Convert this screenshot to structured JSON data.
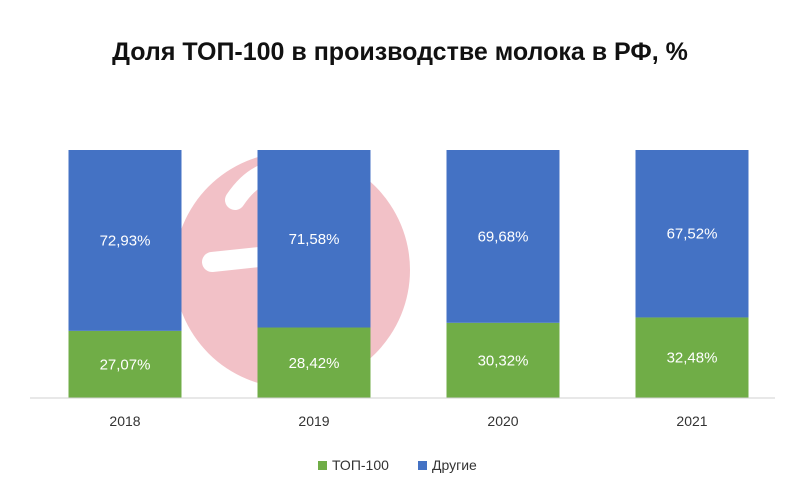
{
  "chart_data": {
    "type": "bar",
    "stacked": true,
    "title": "Доля ТОП-100 в производстве молока в РФ, %",
    "categories": [
      "2018",
      "2019",
      "2020",
      "2021"
    ],
    "series": [
      {
        "name": "ТОП-100",
        "color": "#70ad47",
        "values": [
          27.07,
          28.42,
          30.32,
          32.48
        ],
        "labels": [
          "27,07%",
          "28,42%",
          "30,32%",
          "32,48%"
        ]
      },
      {
        "name": "Другие",
        "color": "#4472c4",
        "values": [
          72.93,
          71.58,
          69.68,
          67.52
        ],
        "labels": [
          "72,93%",
          "71,58%",
          "69,68%",
          "67,52%"
        ]
      }
    ],
    "ylim": [
      0,
      100
    ],
    "grid": false,
    "legend": "bottom",
    "watermark": "pink circular logo"
  }
}
